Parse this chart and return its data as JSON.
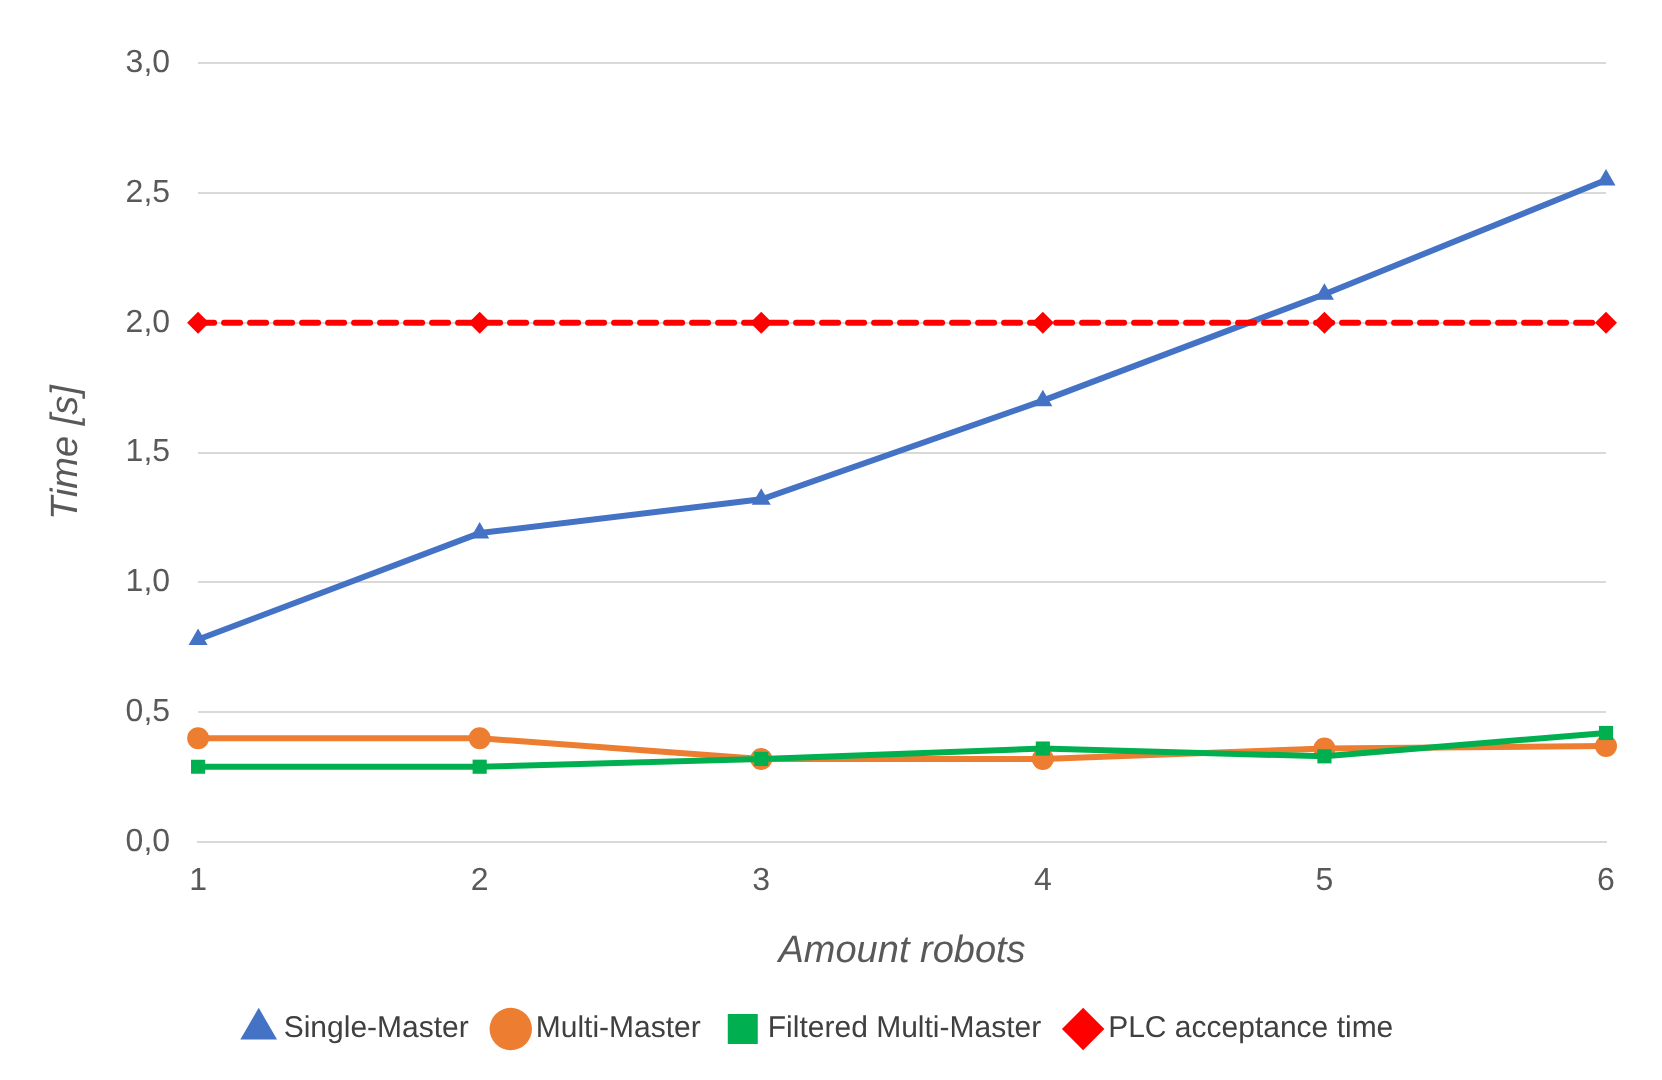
{
  "chart_data": {
    "type": "line",
    "xlabel": "Amount robots",
    "ylabel": "Time [s]",
    "categories": [
      "1",
      "2",
      "3",
      "4",
      "5",
      "6"
    ],
    "ylim": [
      0,
      3
    ],
    "yticks": [
      {
        "value": 0,
        "label": "0,0"
      },
      {
        "value": 0.5,
        "label": "0,5"
      },
      {
        "value": 1,
        "label": "1,0"
      },
      {
        "value": 1.5,
        "label": "1,5"
      },
      {
        "value": 2,
        "label": "2,0"
      },
      {
        "value": 2.5,
        "label": "2,5"
      },
      {
        "value": 3,
        "label": "3,0"
      }
    ],
    "grid": "y",
    "legend": "bottom",
    "series": [
      {
        "name": "Single-Master",
        "color": "#4472c4",
        "marker": "triangle",
        "line_style": "solid",
        "values": [
          0.78,
          1.19,
          1.32,
          1.7,
          2.11,
          2.55
        ]
      },
      {
        "name": "Multi-Master",
        "color": "#ed7d31",
        "marker": "circle",
        "line_style": "solid",
        "values": [
          0.4,
          0.4,
          0.32,
          0.32,
          0.36,
          0.37
        ]
      },
      {
        "name": "Filtered Multi-Master",
        "color": "#00b050",
        "marker": "square",
        "line_style": "solid",
        "values": [
          0.29,
          0.29,
          0.32,
          0.36,
          0.33,
          0.42
        ]
      },
      {
        "name": "PLC acceptance time",
        "color": "#ff0000",
        "marker": "diamond",
        "line_style": "dashed",
        "values": [
          2,
          2,
          2,
          2,
          2,
          2
        ]
      }
    ]
  }
}
